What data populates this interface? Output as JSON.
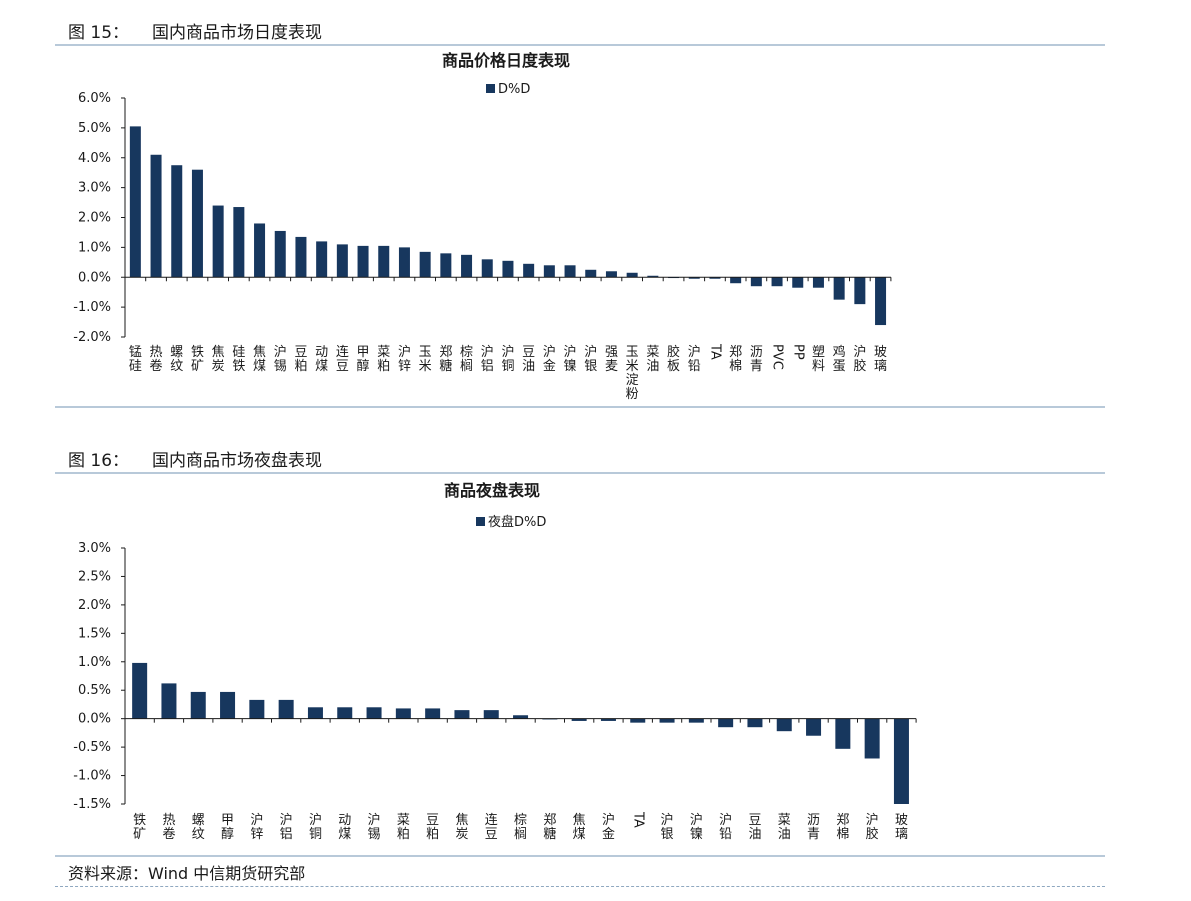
{
  "figures": [
    {
      "label": "图 15：",
      "caption": "国内商品市场日度表现"
    },
    {
      "label": "图 16：",
      "caption": "国内商品市场夜盘表现"
    }
  ],
  "source": "资料来源：Wind  中信期货研究部",
  "colors": {
    "bar": "#17375e",
    "axis": "#1a1a1a",
    "rule": "#b8c9d9"
  },
  "chart_data": [
    {
      "type": "bar",
      "title": "商品价格日度表现",
      "legend": "D%D",
      "legend_position": "top-center",
      "grid": false,
      "ylim": [
        -2.0,
        6.0
      ],
      "yticks": [
        6.0,
        5.0,
        4.0,
        3.0,
        2.0,
        1.0,
        0.0,
        -1.0,
        -2.0
      ],
      "ytick_labels": [
        "6.0%",
        "5.0%",
        "4.0%",
        "3.0%",
        "2.0%",
        "1.0%",
        "0.0%",
        "-1.0%",
        "-2.0%"
      ],
      "categories": [
        "锰硅",
        "热卷",
        "螺纹",
        "铁矿",
        "焦炭",
        "硅铁",
        "焦煤",
        "沪锡",
        "豆粕",
        "动煤",
        "连豆",
        "甲醇",
        "菜粕",
        "沪锌",
        "玉米",
        "郑糖",
        "棕榈",
        "沪铝",
        "沪铜",
        "豆油",
        "沪金",
        "沪镍",
        "沪银",
        "强麦",
        "玉米淀粉",
        "菜油",
        "胶板",
        "沪铅",
        "TA",
        "郑棉",
        "沥青",
        "PVC",
        "PP",
        "塑料",
        "鸡蛋",
        "沪胶",
        "玻璃"
      ],
      "series": [
        {
          "name": "D%D",
          "values": [
            5.05,
            4.1,
            3.75,
            3.6,
            2.4,
            2.35,
            1.8,
            1.55,
            1.35,
            1.2,
            1.1,
            1.05,
            1.05,
            1.0,
            0.85,
            0.8,
            0.75,
            0.6,
            0.55,
            0.45,
            0.4,
            0.4,
            0.25,
            0.2,
            0.15,
            0.05,
            0.0,
            -0.05,
            -0.05,
            -0.2,
            -0.3,
            -0.3,
            -0.35,
            -0.35,
            -0.75,
            -0.9,
            -1.6
          ]
        }
      ]
    },
    {
      "type": "bar",
      "title": "商品夜盘表现",
      "legend": "夜盘D%D",
      "legend_position": "top-center",
      "grid": false,
      "ylim": [
        -1.5,
        3.0
      ],
      "yticks": [
        3.0,
        2.5,
        2.0,
        1.5,
        1.0,
        0.5,
        0.0,
        -0.5,
        -1.0,
        -1.5
      ],
      "ytick_labels": [
        "3.0%",
        "2.5%",
        "2.0%",
        "1.5%",
        "1.0%",
        "0.5%",
        "0.0%",
        "-0.5%",
        "-1.0%",
        "-1.5%"
      ],
      "categories": [
        "铁矿",
        "热卷",
        "螺纹",
        "甲醇",
        "沪锌",
        "沪铝",
        "沪铜",
        "动煤",
        "沪锡",
        "菜粕",
        "豆粕",
        "焦炭",
        "连豆",
        "棕榈",
        "郑糖",
        "焦煤",
        "沪金",
        "TA",
        "沪银",
        "沪镍",
        "沪铅",
        "豆油",
        "菜油",
        "沥青",
        "郑棉",
        "沪胶",
        "玻璃"
      ],
      "series": [
        {
          "name": "夜盘D%D",
          "values": [
            0.98,
            0.62,
            0.47,
            0.47,
            0.33,
            0.33,
            0.2,
            0.2,
            0.2,
            0.18,
            0.18,
            0.15,
            0.15,
            0.06,
            0.0,
            -0.04,
            -0.04,
            -0.07,
            -0.07,
            -0.07,
            -0.15,
            -0.15,
            -0.22,
            -0.3,
            -0.53,
            -0.7,
            -1.5
          ]
        }
      ]
    }
  ]
}
